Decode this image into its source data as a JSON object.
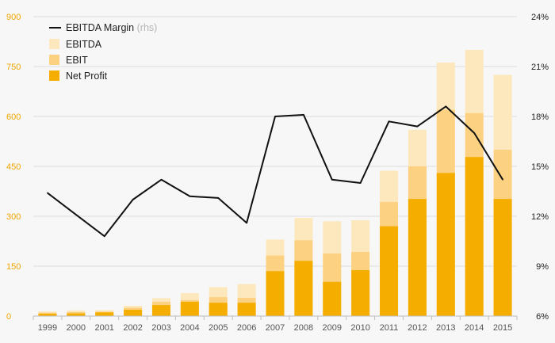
{
  "chart_data": {
    "type": "bar",
    "stacked_overlay": true,
    "categories": [
      "1999",
      "2000",
      "2001",
      "2002",
      "2003",
      "2004",
      "2005",
      "2006",
      "2007",
      "2008",
      "2009",
      "2010",
      "2011",
      "2012",
      "2013",
      "2014",
      "2015"
    ],
    "series": [
      {
        "name": "EBITDA",
        "type": "bar",
        "axis": "left",
        "color": "#fde8bd",
        "values": [
          14,
          17,
          18,
          31,
          54,
          69,
          87,
          96,
          230,
          295,
          285,
          288,
          437,
          560,
          762,
          800,
          725
        ]
      },
      {
        "name": "EBIT",
        "type": "bar",
        "axis": "left",
        "color": "#fcd282",
        "values": [
          10,
          12,
          13,
          25,
          43,
          48,
          57,
          55,
          182,
          228,
          188,
          193,
          343,
          450,
          620,
          610,
          500
        ]
      },
      {
        "name": "Net Profit",
        "type": "bar",
        "axis": "left",
        "color": "#f5ad00",
        "values": [
          7,
          8,
          11,
          19,
          33,
          43,
          40,
          40,
          135,
          166,
          103,
          138,
          270,
          352,
          430,
          478,
          352
        ]
      },
      {
        "name": "EBITDA Margin",
        "type": "line",
        "axis": "right",
        "color": "#111111",
        "values": [
          13.4,
          12.1,
          10.8,
          13.0,
          14.2,
          13.2,
          13.1,
          11.6,
          18.0,
          18.1,
          14.2,
          14.0,
          17.7,
          17.4,
          18.6,
          17.0,
          14.2
        ]
      }
    ],
    "legend": {
      "position": "top-left",
      "line_label": "EBITDA Margin",
      "line_note": "(rhs)",
      "items": [
        "EBITDA",
        "EBIT",
        "Net Profit"
      ]
    },
    "left_axis": {
      "ylim": [
        0,
        900
      ],
      "ticks": [
        "0",
        "150",
        "300",
        "450",
        "600",
        "750",
        "900"
      ],
      "color": "#f0a500"
    },
    "right_axis": {
      "ylim": [
        6,
        24
      ],
      "ticks": [
        "6%",
        "9%",
        "12%",
        "15%",
        "18%",
        "21%",
        "24%"
      ],
      "color": "#222222"
    },
    "grid": true,
    "background": "#f7f7f7"
  }
}
